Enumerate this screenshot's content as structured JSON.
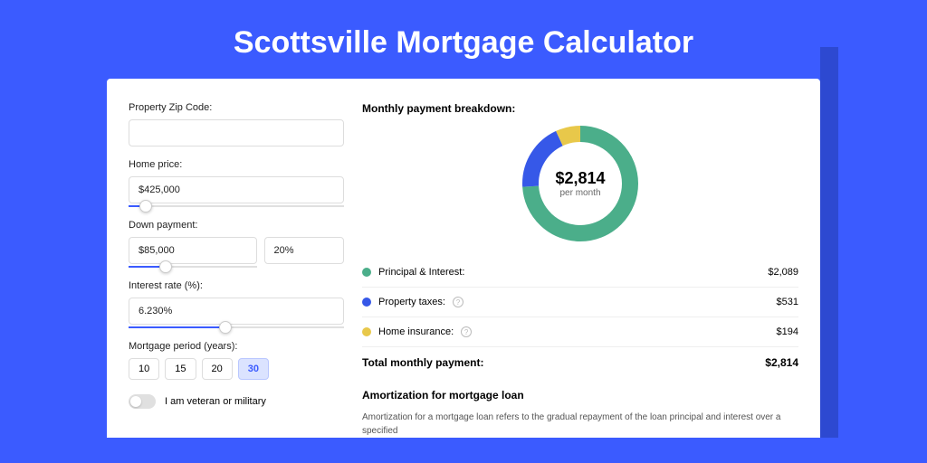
{
  "page": {
    "title": "Scottsville Mortgage Calculator",
    "colors": {
      "page_bg": "#3b5bff",
      "shadow_bg": "#2d49d1",
      "card_bg": "#ffffff",
      "title_color": "#ffffff"
    },
    "title_fontsize": 34
  },
  "form": {
    "zip_label": "Property Zip Code:",
    "zip_value": "",
    "home_price_label": "Home price:",
    "home_price_value": "$425,000",
    "home_price_slider_pct": 8,
    "down_label": "Down payment:",
    "down_amount": "$85,000",
    "down_pct": "20%",
    "down_slider_pct": 29,
    "rate_label": "Interest rate (%):",
    "rate_value": "6.230%",
    "rate_slider_pct": 45,
    "period_label": "Mortgage period (years):",
    "period_options": [
      "10",
      "15",
      "20",
      "30"
    ],
    "period_selected": "30",
    "veteran_label": "I am veteran or military",
    "veteran_on": false
  },
  "breakdown": {
    "title": "Monthly payment breakdown:",
    "total_amount": "$2,814",
    "total_sub": "per month",
    "donut": {
      "segments": [
        {
          "label": "Principal & Interest",
          "color": "#4bae8a",
          "value": 2089,
          "pct": 74
        },
        {
          "label": "Property taxes",
          "color": "#3658e8",
          "value": 531,
          "pct": 19
        },
        {
          "label": "Home insurance",
          "color": "#e8c84a",
          "value": 194,
          "pct": 7
        }
      ],
      "stroke_width": 18,
      "radius": 55
    },
    "lines": [
      {
        "label": "Principal & Interest:",
        "color": "#4bae8a",
        "value": "$2,089",
        "info": false
      },
      {
        "label": "Property taxes:",
        "color": "#3658e8",
        "value": "$531",
        "info": true
      },
      {
        "label": "Home insurance:",
        "color": "#e8c84a",
        "value": "$194",
        "info": true
      }
    ],
    "total_label": "Total monthly payment:",
    "total_value": "$2,814"
  },
  "amortization": {
    "title": "Amortization for mortgage loan",
    "text": "Amortization for a mortgage loan refers to the gradual repayment of the loan principal and interest over a specified"
  }
}
